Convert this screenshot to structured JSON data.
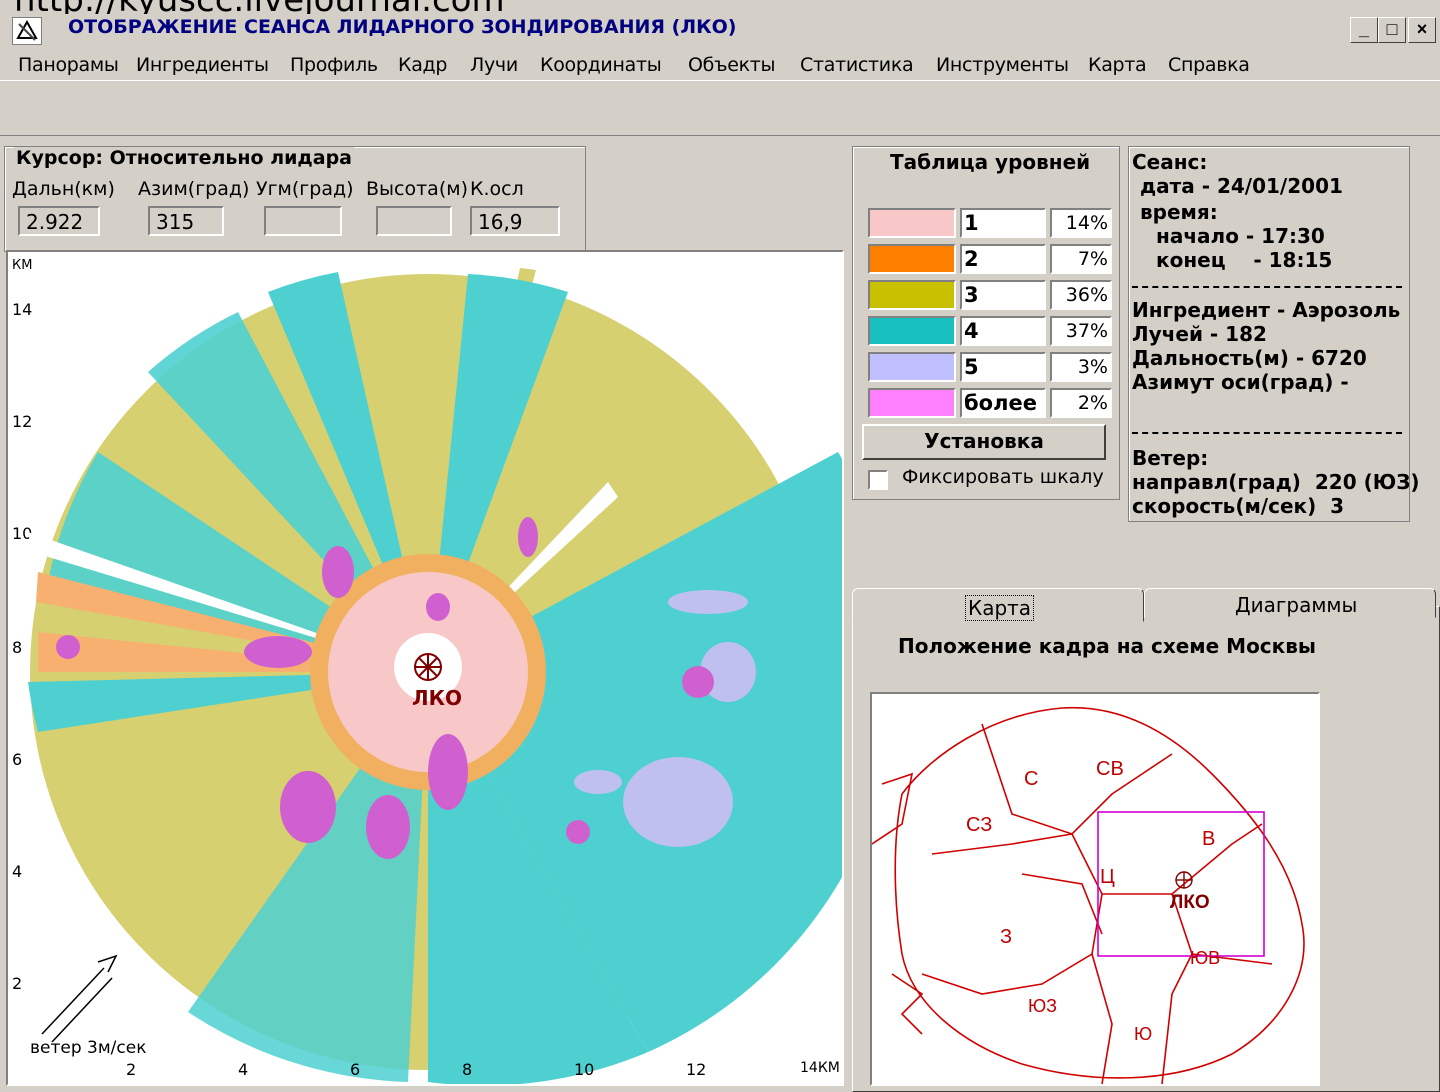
{
  "url_fragment": "http://kyuscc.livejournal.com",
  "window": {
    "title": "ОТОБРАЖЕНИЕ СЕАНСА ЛИДАРНОГО ЗОНДИРОВАНИЯ (ЛКО)",
    "minimize": "_",
    "maximize": "□",
    "close": "×"
  },
  "menu": [
    "Панорамы",
    "Ингредиенты",
    "Профиль",
    "Кадр",
    "Лучи",
    "Координаты",
    "Объекты",
    "Статистика",
    "Инструменты",
    "Карта",
    "Справка"
  ],
  "cursor": {
    "title": "Курсор: Относительно лидара",
    "labels": [
      "Дальн(км)",
      "Азим(град)",
      "Угм(град)",
      "Высота(м)",
      "К.осл"
    ],
    "values": [
      "2.922",
      "315",
      "",
      "",
      "16,9"
    ]
  },
  "plot": {
    "y_unit": "КМ",
    "y_ticks": [
      "14",
      "12",
      "10",
      "8",
      "6",
      "4",
      "2"
    ],
    "x_ticks": [
      "2",
      "4",
      "6",
      "8",
      "10",
      "12"
    ],
    "x_last": "14КМ",
    "center_label": "ЛКО",
    "wind_label": "ветер 3м/сек"
  },
  "levels": {
    "title": "Таблица уровней",
    "rows": [
      {
        "name": "1",
        "pct": "14%",
        "color": "#f8c8c8"
      },
      {
        "name": "2",
        "pct": "7%",
        "color": "#ff8000"
      },
      {
        "name": "3",
        "pct": "36%",
        "color": "#c8c000"
      },
      {
        "name": "4",
        "pct": "37%",
        "color": "#18c0c0"
      },
      {
        "name": "5",
        "pct": "3%",
        "color": "#c0c0ff"
      },
      {
        "name": "более",
        "pct": "2%",
        "color": "#ff80ff"
      }
    ],
    "setup_button": "Установка",
    "fix_scale": "Фиксировать шкалу"
  },
  "session": {
    "title": "Сеанс:",
    "date": "дата - 24/01/2001",
    "time": "время:",
    "start": "начало - 17:30",
    "end": "конец    - 18:15",
    "ingredient": "Ингредиент - Аэрозоль",
    "rays": "Лучей - 182",
    "range": "Дальность(м) - 6720",
    "azimuth": "Азимут оси(град) -",
    "wind": "Ветер:",
    "wind_dir": "направл(град)  220 (ЮЗ)",
    "wind_speed": "скорость(м/сек)  3"
  },
  "tabs": {
    "map": "Карта",
    "diagrams": "Диаграммы",
    "map_title": "Положение кадра на схеме Москвы"
  },
  "moscow_map": {
    "districts": [
      "С",
      "СВ",
      "СЗ",
      "В",
      "Ц",
      "З",
      "ЮВ",
      "ЮЗ",
      "Ю"
    ],
    "station": "ЛКО"
  }
}
